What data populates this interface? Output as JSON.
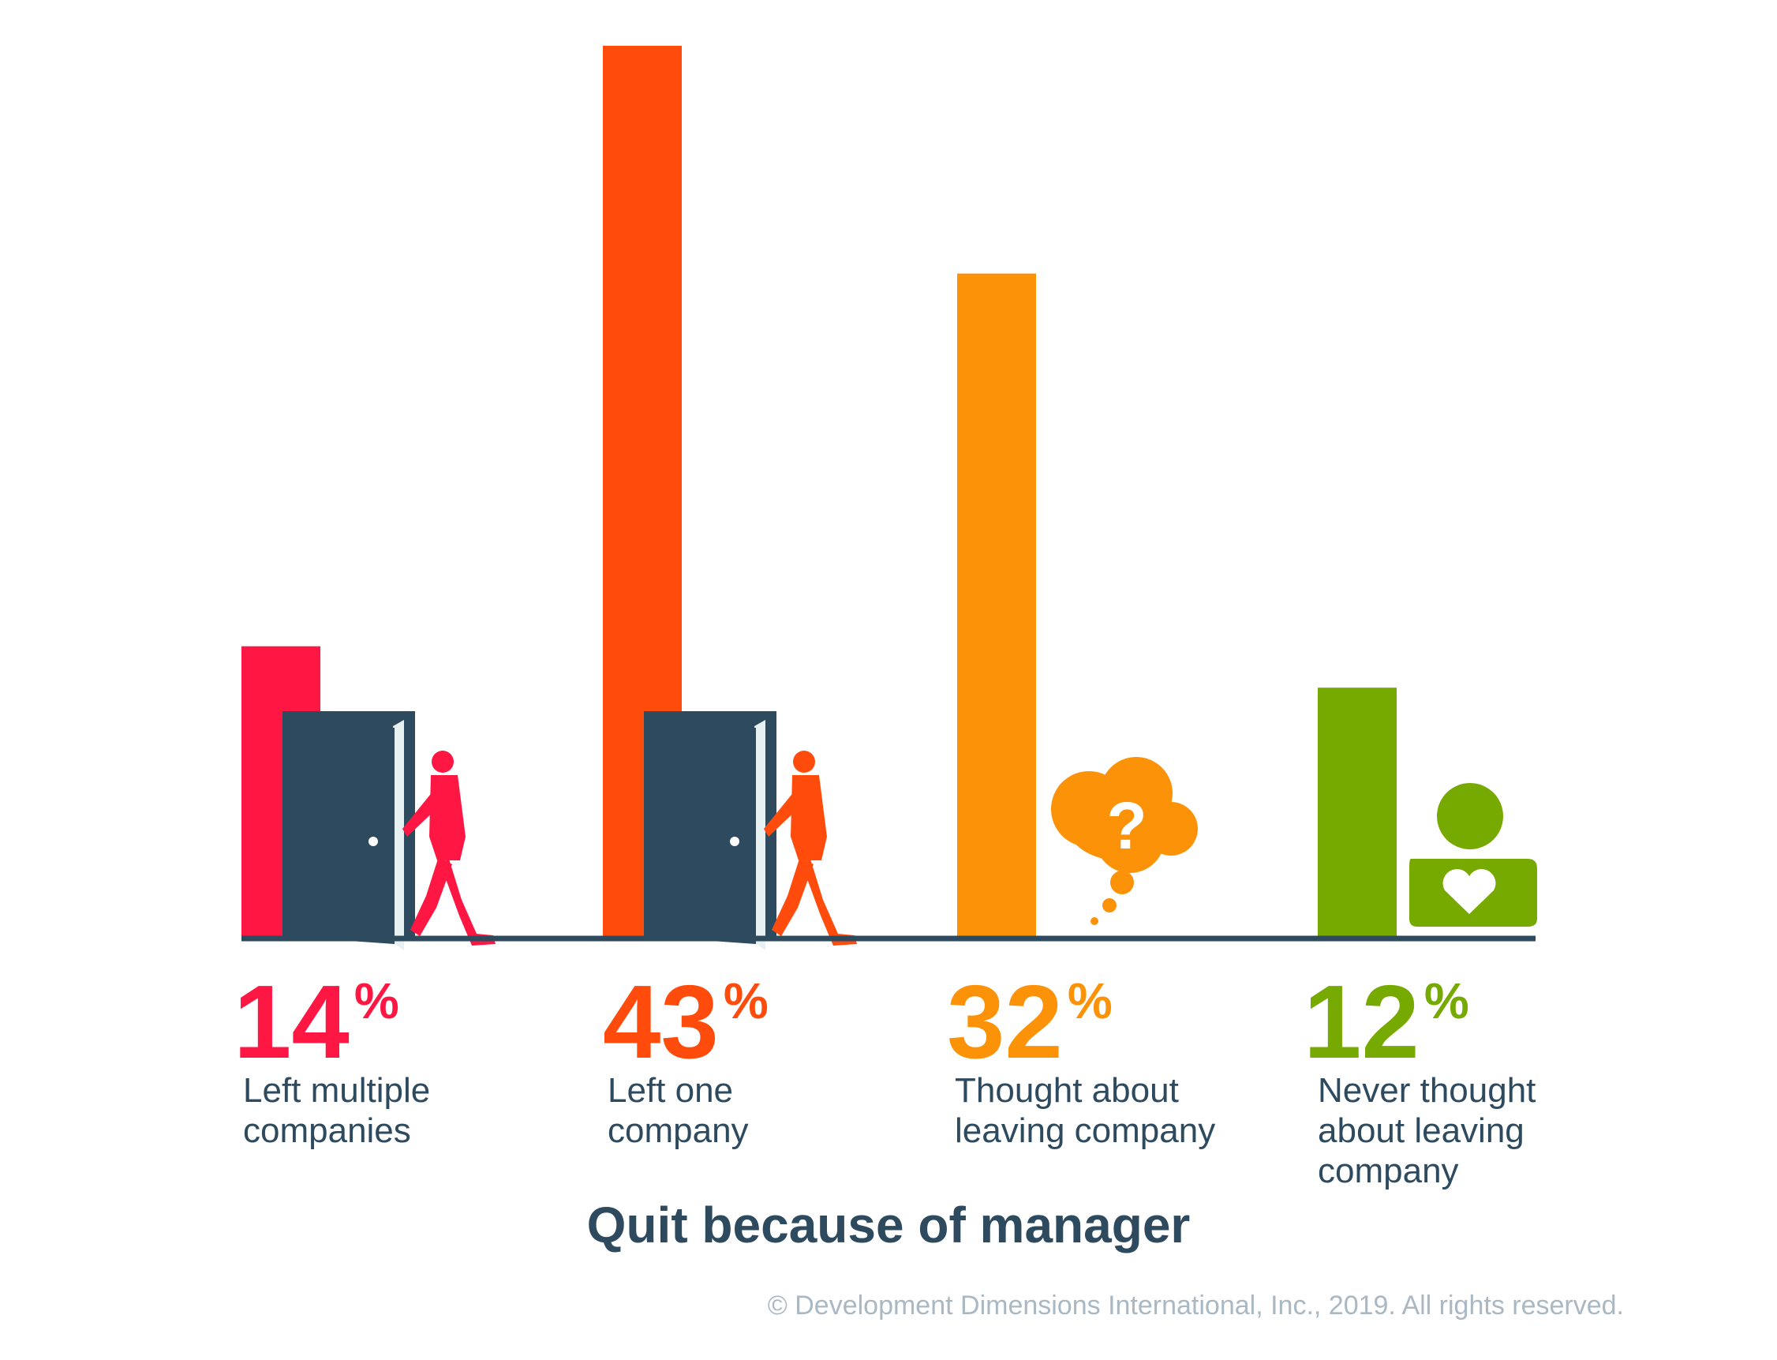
{
  "chart_data": {
    "type": "bar",
    "title": "Quit because of manager",
    "categories": [
      "Left multiple companies",
      "Left one company",
      "Thought about leaving company",
      "Never thought about leaving company"
    ],
    "category_lines": [
      [
        "Left multiple",
        "companies"
      ],
      [
        "Left one",
        "company"
      ],
      [
        "Thought about",
        "leaving company"
      ],
      [
        "Never thought",
        "about leaving",
        "company"
      ]
    ],
    "values": [
      14,
      43,
      32,
      12
    ],
    "value_labels": [
      "14",
      "43",
      "32",
      "12"
    ],
    "unit": "%",
    "colors": [
      "#ff1744",
      "#ff4c0c",
      "#fb9208",
      "#77aa00"
    ],
    "icons": [
      "person-leaving-door-icon",
      "person-leaving-door-icon",
      "thought-bubble-question-icon",
      "person-heart-icon"
    ],
    "ylim": [
      0,
      43
    ],
    "grid": false
  },
  "copyright": "© Development Dimensions International, Inc., 2019. All rights reserved.",
  "colors": {
    "text": "#2e4a5f",
    "door": "#2e4a5f",
    "copyright": "#a9b8c3"
  }
}
